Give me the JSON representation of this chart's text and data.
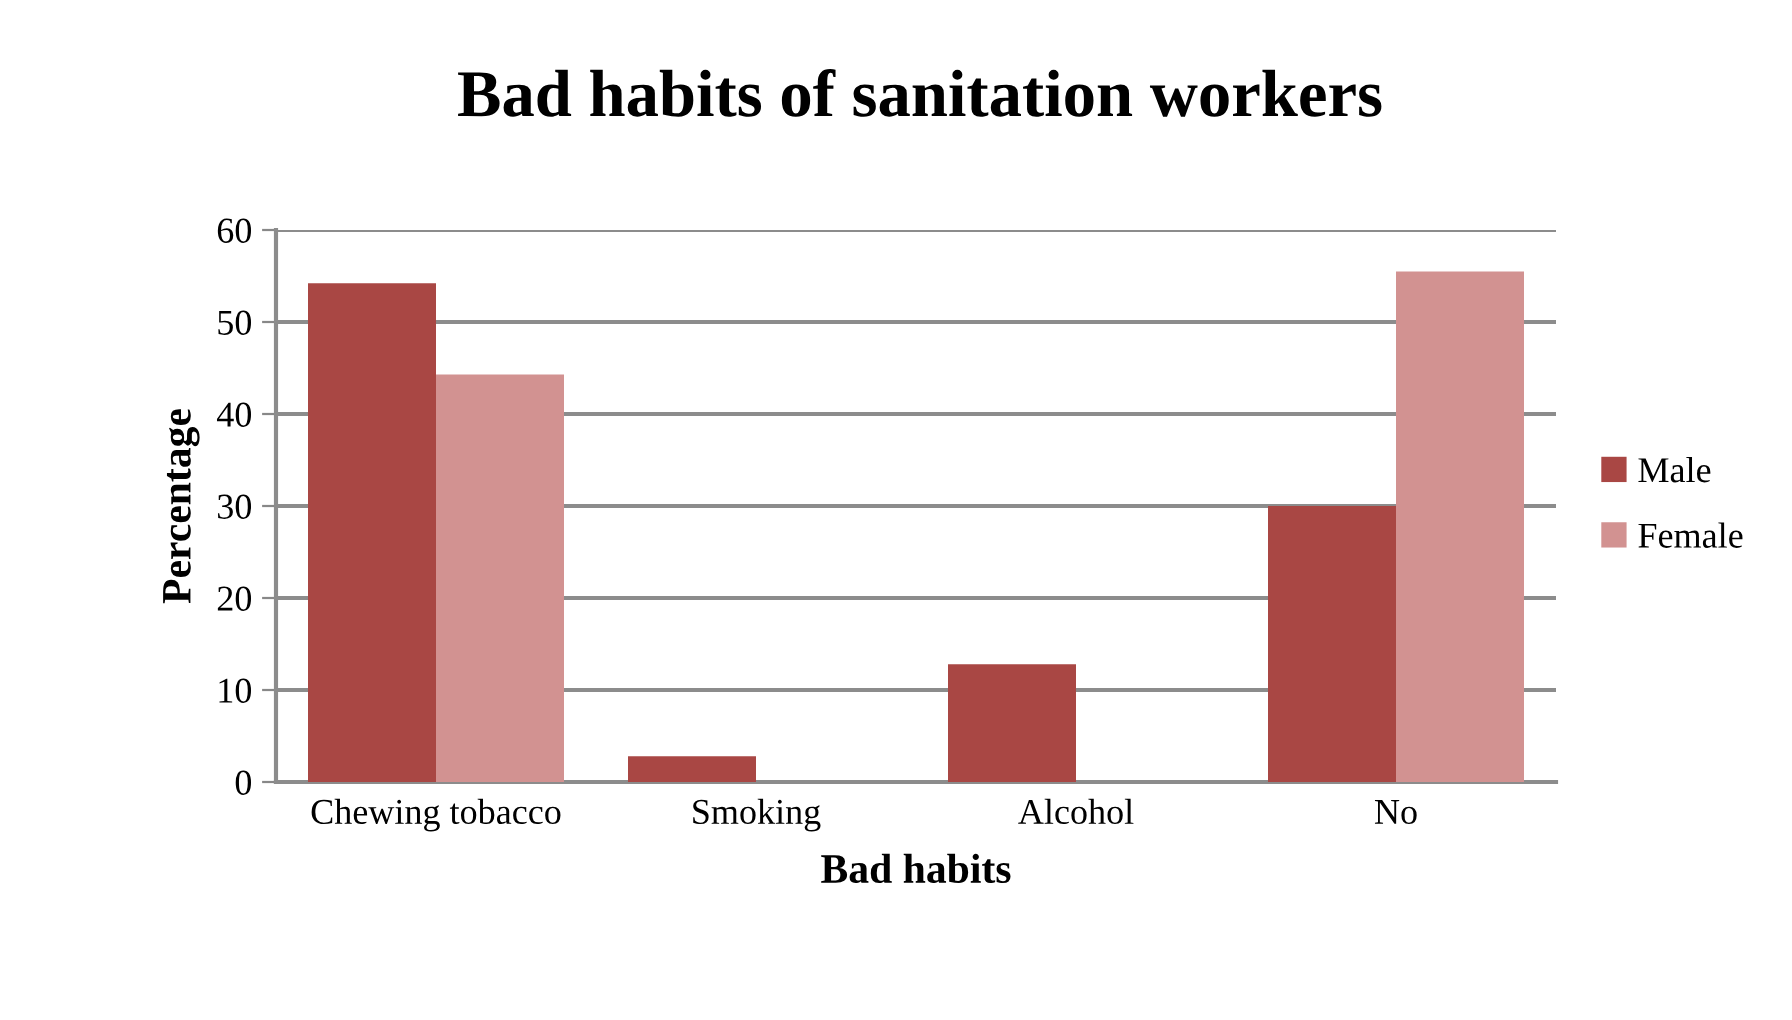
{
  "chart_data": {
    "type": "bar",
    "title": "Bad habits of sanitation workers",
    "xlabel": "Bad habits",
    "ylabel": "Percentage",
    "categories": [
      "Chewing tobacco",
      "Smoking",
      "Alcohol",
      "No"
    ],
    "series": [
      {
        "name": "Male",
        "color": "#a94744",
        "values": [
          54.2,
          2.8,
          12.8,
          30.0
        ]
      },
      {
        "name": "Female",
        "color": "#d29291",
        "values": [
          44.3,
          0,
          0,
          55.5
        ]
      }
    ],
    "ylim": [
      0,
      60
    ],
    "yticks": [
      0,
      10,
      20,
      30,
      40,
      50,
      60
    ],
    "grid": "y",
    "legend": "right"
  }
}
